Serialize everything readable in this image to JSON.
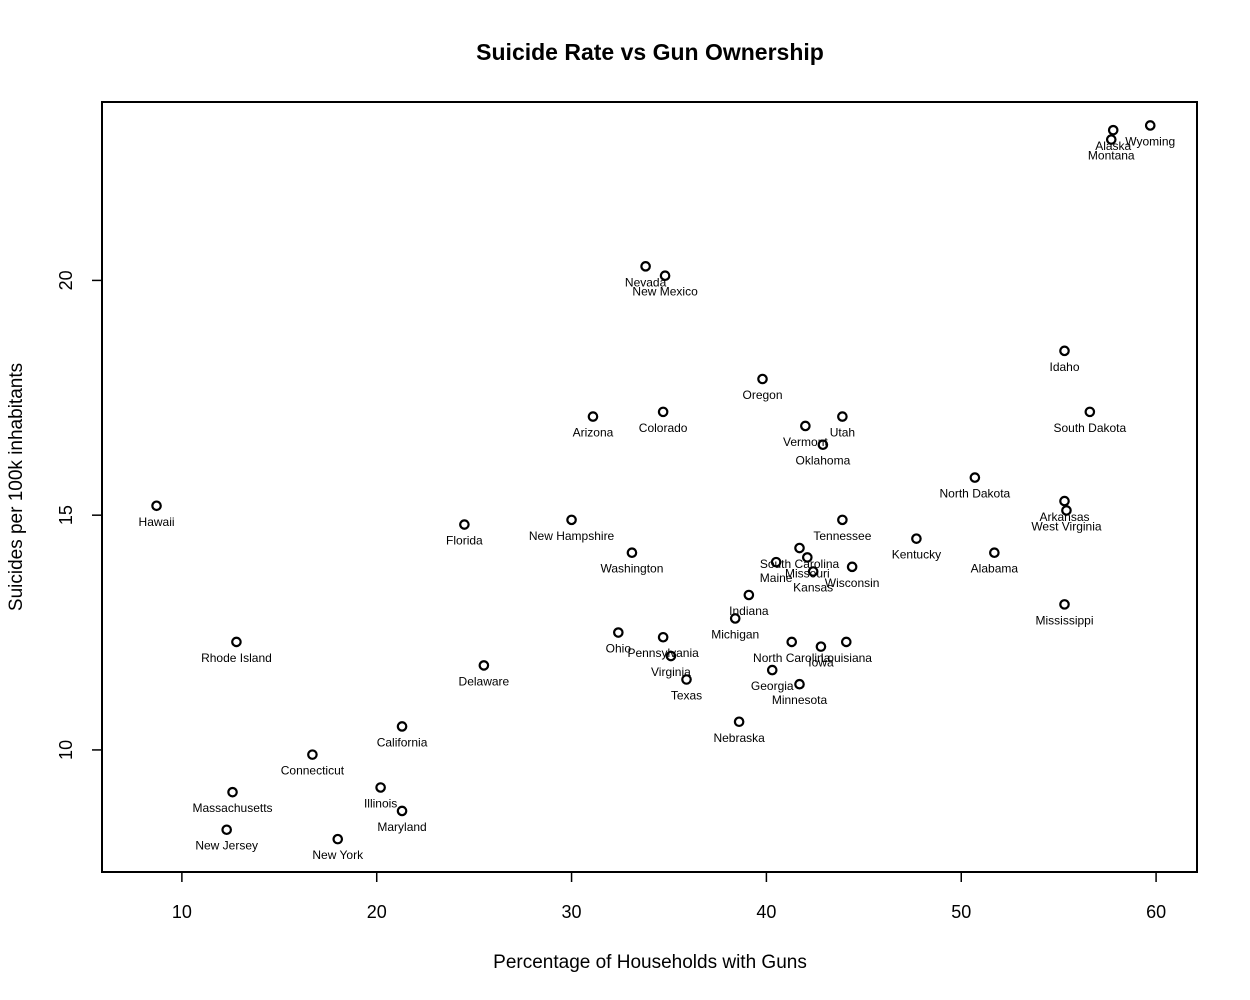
{
  "chart_data": {
    "type": "scatter",
    "title": "Suicide Rate vs Gun Ownership",
    "xlabel": "Percentage of Households with Guns",
    "ylabel": "Suicides per 100k inhabitants",
    "xlim": [
      5.9,
      62.1
    ],
    "ylim": [
      7.4,
      23.8
    ],
    "xticks": [
      10,
      20,
      30,
      40,
      50,
      60
    ],
    "yticks": [
      10,
      15,
      20
    ],
    "grid": false,
    "legend": "none",
    "points": [
      {
        "label": "Hawaii",
        "x": 8.7,
        "y": 15.2
      },
      {
        "label": "Rhode Island",
        "x": 12.8,
        "y": 12.3
      },
      {
        "label": "Massachusetts",
        "x": 12.6,
        "y": 9.1
      },
      {
        "label": "New Jersey",
        "x": 12.3,
        "y": 8.3
      },
      {
        "label": "Connecticut",
        "x": 16.7,
        "y": 9.9
      },
      {
        "label": "New York",
        "x": 18.0,
        "y": 8.1
      },
      {
        "label": "Illinois",
        "x": 20.2,
        "y": 9.2
      },
      {
        "label": "California",
        "x": 21.3,
        "y": 10.5
      },
      {
        "label": "Maryland",
        "x": 21.3,
        "y": 8.7
      },
      {
        "label": "Florida",
        "x": 24.5,
        "y": 14.8
      },
      {
        "label": "Delaware",
        "x": 25.5,
        "y": 11.8
      },
      {
        "label": "New Hampshire",
        "x": 30.0,
        "y": 14.9
      },
      {
        "label": "Arizona",
        "x": 31.1,
        "y": 17.1
      },
      {
        "label": "Ohio",
        "x": 32.4,
        "y": 12.5
      },
      {
        "label": "Washington",
        "x": 33.1,
        "y": 14.2
      },
      {
        "label": "Nevada",
        "x": 33.8,
        "y": 20.3
      },
      {
        "label": "Colorado",
        "x": 34.7,
        "y": 17.2
      },
      {
        "label": "Pennsylvania",
        "x": 34.7,
        "y": 12.4
      },
      {
        "label": "New Mexico",
        "x": 34.8,
        "y": 20.1
      },
      {
        "label": "Virginia",
        "x": 35.1,
        "y": 12.0
      },
      {
        "label": "Texas",
        "x": 35.9,
        "y": 11.5
      },
      {
        "label": "Michigan",
        "x": 38.4,
        "y": 12.8
      },
      {
        "label": "Nebraska",
        "x": 38.6,
        "y": 10.6
      },
      {
        "label": "Indiana",
        "x": 39.1,
        "y": 13.3
      },
      {
        "label": "Oregon",
        "x": 39.8,
        "y": 17.9
      },
      {
        "label": "Georgia",
        "x": 40.3,
        "y": 11.7
      },
      {
        "label": "Maine",
        "x": 40.5,
        "y": 14.0
      },
      {
        "label": "North Carolina",
        "x": 41.3,
        "y": 12.3
      },
      {
        "label": "Minnesota",
        "x": 41.7,
        "y": 11.4
      },
      {
        "label": "South Carolina",
        "x": 41.7,
        "y": 14.3
      },
      {
        "label": "Vermont",
        "x": 42.0,
        "y": 16.9
      },
      {
        "label": "Missouri",
        "x": 42.1,
        "y": 14.1
      },
      {
        "label": "Kansas",
        "x": 42.4,
        "y": 13.8
      },
      {
        "label": "Iowa",
        "x": 42.8,
        "y": 12.2
      },
      {
        "label": "Oklahoma",
        "x": 42.9,
        "y": 16.5
      },
      {
        "label": "Utah",
        "x": 43.9,
        "y": 17.1
      },
      {
        "label": "Tennessee",
        "x": 43.9,
        "y": 14.9
      },
      {
        "label": "Louisiana",
        "x": 44.1,
        "y": 12.3
      },
      {
        "label": "Wisconsin",
        "x": 44.4,
        "y": 13.9
      },
      {
        "label": "Kentucky",
        "x": 47.7,
        "y": 14.5
      },
      {
        "label": "North Dakota",
        "x": 50.7,
        "y": 15.8
      },
      {
        "label": "Alabama",
        "x": 51.7,
        "y": 14.2
      },
      {
        "label": "Idaho",
        "x": 55.3,
        "y": 18.5
      },
      {
        "label": "Arkansas",
        "x": 55.3,
        "y": 15.3
      },
      {
        "label": "Mississippi",
        "x": 55.3,
        "y": 13.1
      },
      {
        "label": "West Virginia",
        "x": 55.4,
        "y": 15.1
      },
      {
        "label": "South Dakota",
        "x": 56.6,
        "y": 17.2
      },
      {
        "label": "Montana",
        "x": 57.7,
        "y": 23.0
      },
      {
        "label": "Alaska",
        "x": 57.8,
        "y": 23.2
      },
      {
        "label": "Wyoming",
        "x": 59.7,
        "y": 23.3
      }
    ]
  }
}
